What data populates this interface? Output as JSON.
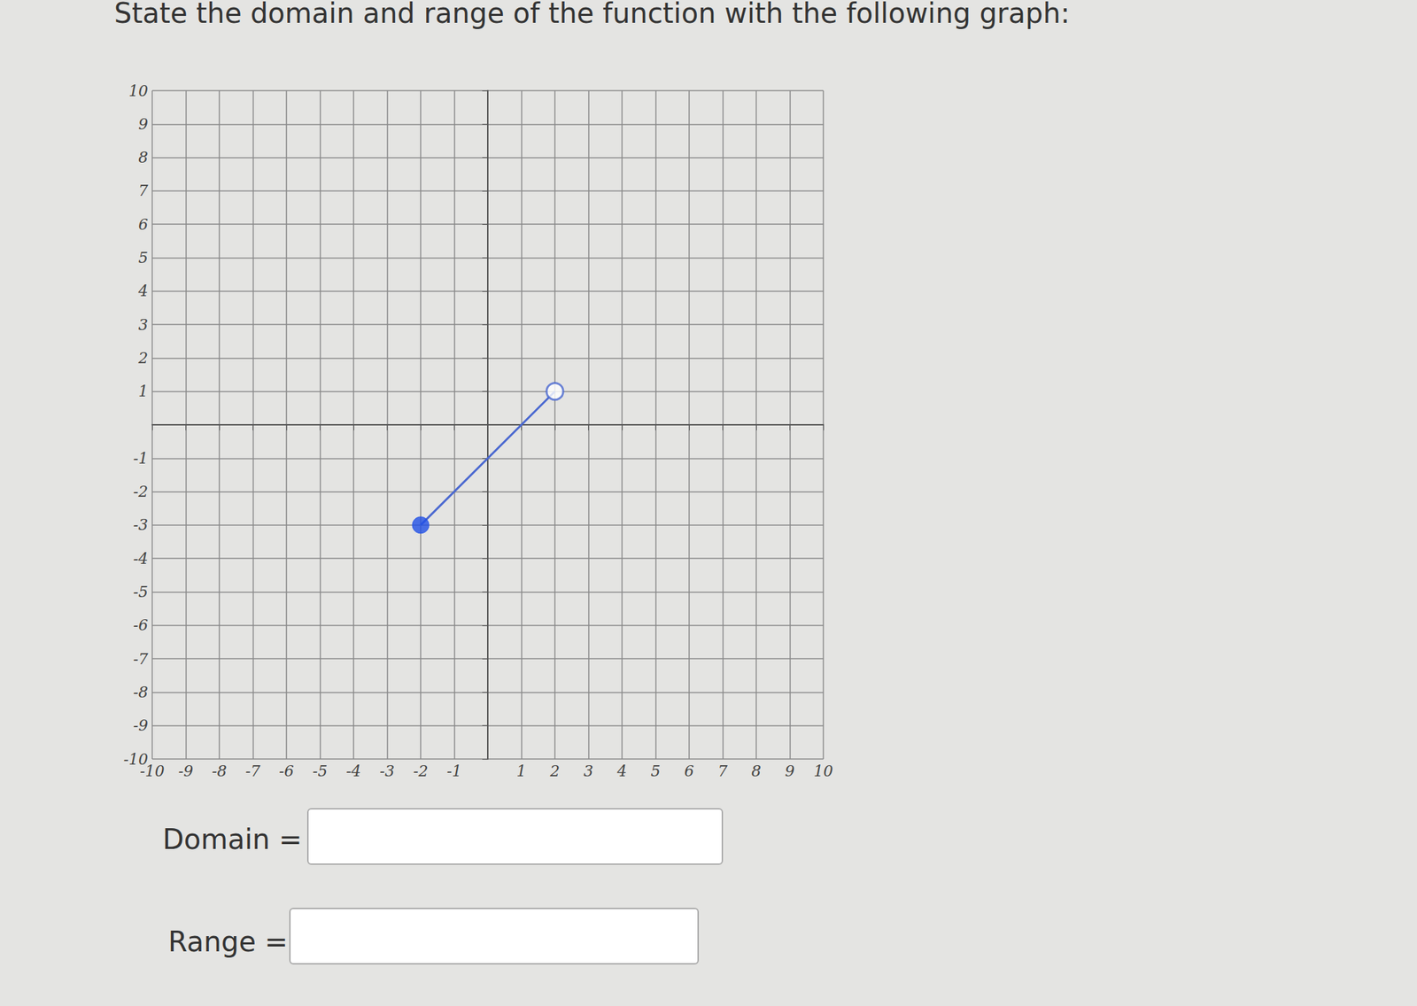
{
  "chart_data": {
    "type": "line",
    "title": "State the domain and range of the function with the following graph:",
    "x": [
      -2,
      2
    ],
    "series": [
      {
        "type": "line",
        "color": "#4a68d0",
        "values": [
          -3,
          1
        ],
        "marker": "none"
      },
      {
        "type": "scatter",
        "color": "#1f4fe6",
        "values": [
          -3,
          null
        ],
        "marker": "filled"
      },
      {
        "type": "scatter",
        "color": "#4a68d0",
        "values": [
          null,
          1
        ],
        "marker": "open"
      }
    ],
    "xlim": [
      -10,
      10
    ],
    "ylim": [
      -10,
      10
    ],
    "xticks": [
      -10,
      -9,
      -8,
      -7,
      -6,
      -5,
      -4,
      -3,
      -2,
      -1,
      1,
      2,
      3,
      4,
      5,
      6,
      7,
      8,
      9,
      10
    ],
    "yticks": [
      -10,
      -9,
      -8,
      -7,
      -6,
      -5,
      -4,
      -3,
      -2,
      -1,
      1,
      2,
      3,
      4,
      5,
      6,
      7,
      8,
      9,
      10
    ],
    "grid": true,
    "annotations": [
      "Domain =",
      "Range ="
    ]
  }
}
